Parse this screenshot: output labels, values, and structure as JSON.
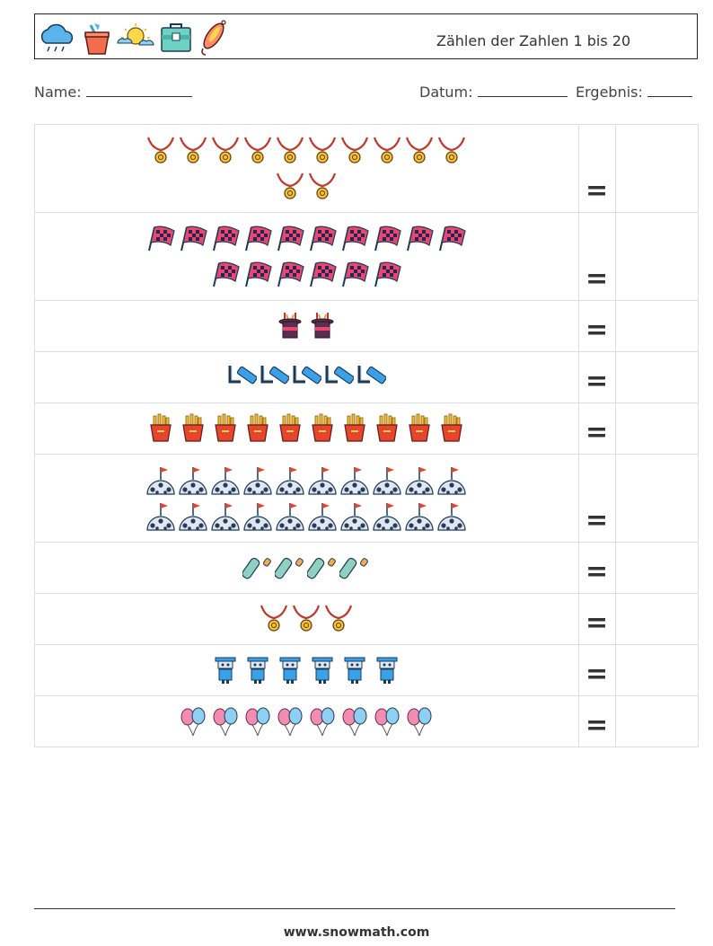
{
  "header": {
    "title": "Zählen der Zahlen 1 bis 20",
    "icons": [
      "cloud-rain-icon",
      "sand-bucket-icon",
      "sun-cloud-icon",
      "cooler-box-icon",
      "fishing-lure-icon"
    ]
  },
  "info": {
    "name_label": "Name:",
    "date_label": "Datum:",
    "result_label": "Ergebnis:"
  },
  "rows": [
    {
      "icon": "medal-icon",
      "count": 12,
      "per_line": 10,
      "height": 98
    },
    {
      "icon": "checkered-flag-icon",
      "count": 16,
      "per_line": 10,
      "height": 98
    },
    {
      "icon": "magic-hat-icon",
      "count": 2,
      "per_line": 10,
      "height": 57
    },
    {
      "icon": "hockey-stick-icon",
      "count": 5,
      "per_line": 10,
      "height": 57
    },
    {
      "icon": "french-fries-icon",
      "count": 10,
      "per_line": 10,
      "height": 57
    },
    {
      "icon": "golf-ball-flag-icon",
      "count": 20,
      "per_line": 10,
      "height": 98
    },
    {
      "icon": "bottle-icon",
      "count": 4,
      "per_line": 10,
      "height": 57
    },
    {
      "icon": "medal-icon",
      "count": 3,
      "per_line": 10,
      "height": 57
    },
    {
      "icon": "robot-icon",
      "count": 6,
      "per_line": 10,
      "height": 57
    },
    {
      "icon": "balloons-icon",
      "count": 8,
      "per_line": 10,
      "height": 57
    }
  ],
  "equals_sign": "=",
  "footer": {
    "text": "www.snowmath.com"
  }
}
